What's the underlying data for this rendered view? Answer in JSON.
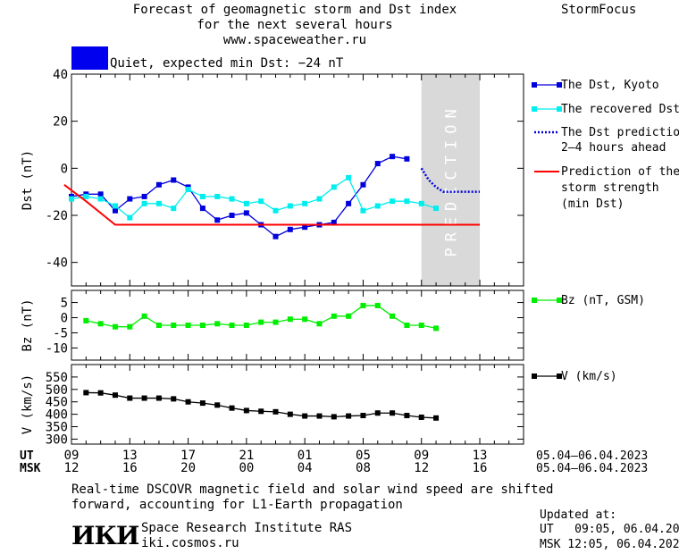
{
  "header": {
    "title_line1": "Forecast of geomagnetic storm and Dst index",
    "title_line2": "for the next several hours",
    "url": "www.spaceweather.ru",
    "brand": "StormFocus",
    "status_text": "Quiet, expected min Dst: −24 nT",
    "status_color": "#0000ee"
  },
  "chart_data": [
    {
      "type": "line",
      "panel": "dst",
      "ylabel": "Dst (nT)",
      "ylim": [
        -50,
        40
      ],
      "yticks": [
        40,
        20,
        0,
        -20,
        -40
      ],
      "xlim": [
        0,
        31
      ],
      "series": [
        {
          "name": "The Dst, Kyoto",
          "color": "#0000dd",
          "marker": "square",
          "x": [
            0,
            1,
            2,
            3,
            4,
            5,
            6,
            7,
            8,
            9,
            10,
            11,
            12,
            13,
            14,
            15,
            16,
            17,
            18,
            19,
            20,
            21,
            22,
            23
          ],
          "y": [
            -12,
            -11,
            -11,
            -18,
            -13,
            -12,
            -7,
            -5,
            -8,
            -17,
            -22,
            -20,
            -19,
            -24,
            -29,
            -26,
            -25,
            -24,
            -23,
            -15,
            -7,
            2,
            5,
            4
          ]
        },
        {
          "name": "The recovered Dst",
          "color": "#00eeee",
          "marker": "square",
          "x": [
            0,
            1,
            2,
            3,
            4,
            5,
            6,
            7,
            8,
            9,
            10,
            11,
            12,
            13,
            14,
            15,
            16,
            17,
            18,
            19,
            20,
            21,
            22,
            23,
            24,
            25
          ],
          "y": [
            -13,
            -12,
            -13,
            -16,
            -21,
            -15,
            -15,
            -17,
            -9,
            -12,
            -12,
            -13,
            -15,
            -14,
            -18,
            -16,
            -15,
            -13,
            -8,
            -4,
            -18,
            -16,
            -14,
            -14,
            -15,
            -17
          ]
        },
        {
          "name": "The Dst prediction 2-4 hours ahead",
          "color": "#0000dd",
          "style": "dotted",
          "x": [
            24,
            24.5,
            25,
            25.5,
            26,
            27,
            28
          ],
          "y": [
            0,
            -5,
            -8,
            -10,
            -10,
            -10,
            -10
          ]
        },
        {
          "name": "Prediction of the storm strength (min Dst)",
          "color": "#ff0000",
          "x": [
            -0.5,
            1,
            2,
            3,
            28
          ],
          "y": [
            -7,
            -14,
            -19,
            -24,
            -24
          ]
        }
      ],
      "prediction_band": {
        "x_from": 24,
        "x_to": 28,
        "label": "PREDICTION"
      }
    },
    {
      "type": "line",
      "panel": "bz",
      "ylabel": "Bz (nT)",
      "ylim": [
        -14,
        9
      ],
      "yticks": [
        5,
        0,
        -5,
        -10
      ],
      "series": [
        {
          "name": "Bz (nT, GSM)",
          "color": "#00ee00",
          "marker": "square",
          "x": [
            1,
            2,
            3,
            4,
            5,
            6,
            7,
            8,
            9,
            10,
            11,
            12,
            13,
            14,
            15,
            16,
            17,
            18,
            19,
            20,
            21,
            22,
            23,
            24,
            25
          ],
          "y": [
            -1,
            -2,
            -3,
            -3,
            0.5,
            -2.5,
            -2.5,
            -2.5,
            -2.5,
            -2,
            -2.5,
            -2.5,
            -1.5,
            -1.5,
            -0.5,
            -0.5,
            -2,
            0.5,
            0.5,
            4,
            4,
            0.5,
            -2.5,
            -2.5,
            -3.5
          ]
        }
      ]
    },
    {
      "type": "line",
      "panel": "v",
      "ylabel": "V (km/s)",
      "ylim": [
        280,
        600
      ],
      "yticks": [
        550,
        500,
        450,
        400,
        350,
        300
      ],
      "series": [
        {
          "name": "V (km/s)",
          "color": "#000000",
          "marker": "square",
          "x": [
            1,
            2,
            3,
            4,
            5,
            6,
            7,
            8,
            9,
            10,
            11,
            12,
            13,
            14,
            15,
            16,
            17,
            18,
            19,
            20,
            21,
            22,
            23,
            24,
            25
          ],
          "y": [
            487,
            486,
            477,
            465,
            465,
            465,
            462,
            450,
            445,
            437,
            425,
            415,
            412,
            410,
            400,
            393,
            393,
            390,
            393,
            395,
            405,
            405,
            395,
            388,
            385
          ]
        }
      ]
    }
  ],
  "xaxis": {
    "ut_label": "UT",
    "msk_label": "MSK",
    "ut_ticks": [
      "09",
      "13",
      "17",
      "21",
      "01",
      "05",
      "09",
      "13"
    ],
    "msk_ticks": [
      "12",
      "16",
      "20",
      "00",
      "04",
      "08",
      "12",
      "16"
    ],
    "range": "05.04–06.04.2023"
  },
  "legend": {
    "dst_kyoto": "The Dst, Kyoto",
    "recovered": "The recovered Dst",
    "prediction_line1": "The Dst prediction",
    "prediction_line2": "2–4 hours ahead",
    "strength_line1": "Prediction of the",
    "strength_line2": "storm strength",
    "strength_line3": "(min Dst)",
    "bz": "Bz (nT, GSM)",
    "v": "V (km/s)"
  },
  "footer": {
    "note_line1": "Real-time DSCOVR magnetic field and solar wind speed are shifted",
    "note_line2": "forward, accounting for L1-Earth propagation",
    "logo": "ИКИ",
    "institute": "Space Research Institute RAS",
    "site": "iki.cosmos.ru",
    "updated_label": "Updated at:",
    "updated_ut": "UT   09:05, 06.04.2023",
    "updated_msk": "MSK 12:05, 06.04.2023"
  }
}
